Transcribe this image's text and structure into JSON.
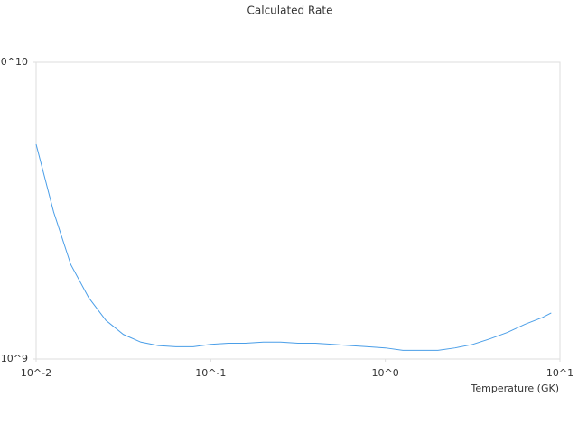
{
  "chart_data": {
    "type": "line",
    "title": "Calculated Rate",
    "x_label": "Temperature (GK)",
    "x_log": true,
    "y_log": true,
    "xlim": [
      0.01,
      10
    ],
    "ylim": [
      1000000000,
      10000000000
    ],
    "xticks": [
      {
        "value": 0.01,
        "label": "10^-2"
      },
      {
        "value": 0.1,
        "label": "10^-1"
      },
      {
        "value": 1,
        "label": "10^0"
      },
      {
        "value": 10,
        "label": "10^1"
      }
    ],
    "yticks": [
      {
        "value": 1000000000,
        "label": "10^9"
      },
      {
        "value": 10000000000,
        "label": "10^10"
      }
    ],
    "x": [
      0.01,
      0.0126,
      0.0158,
      0.02,
      0.0251,
      0.0316,
      0.0398,
      0.0501,
      0.0631,
      0.0794,
      0.1,
      0.126,
      0.158,
      0.2,
      0.251,
      0.316,
      0.398,
      0.501,
      0.631,
      0.794,
      1,
      1.26,
      1.58,
      2,
      2.51,
      3.16,
      3.98,
      5.01,
      6.31,
      7.94,
      8.91
    ],
    "series": [
      {
        "color": "#4a9ee8",
        "values": [
          5290000000,
          3130000000,
          2080000000,
          1610000000,
          1350000000,
          1210000000,
          1140000000,
          1110000000,
          1100000000,
          1100000000,
          1120000000,
          1130000000,
          1130000000,
          1140000000,
          1140000000,
          1130000000,
          1130000000,
          1120000000,
          1110000000,
          1100000000,
          1090000000,
          1070000000,
          1070000000,
          1070000000,
          1090000000,
          1120000000,
          1170000000,
          1230000000,
          1310000000,
          1380000000,
          1430000000
        ]
      }
    ]
  }
}
